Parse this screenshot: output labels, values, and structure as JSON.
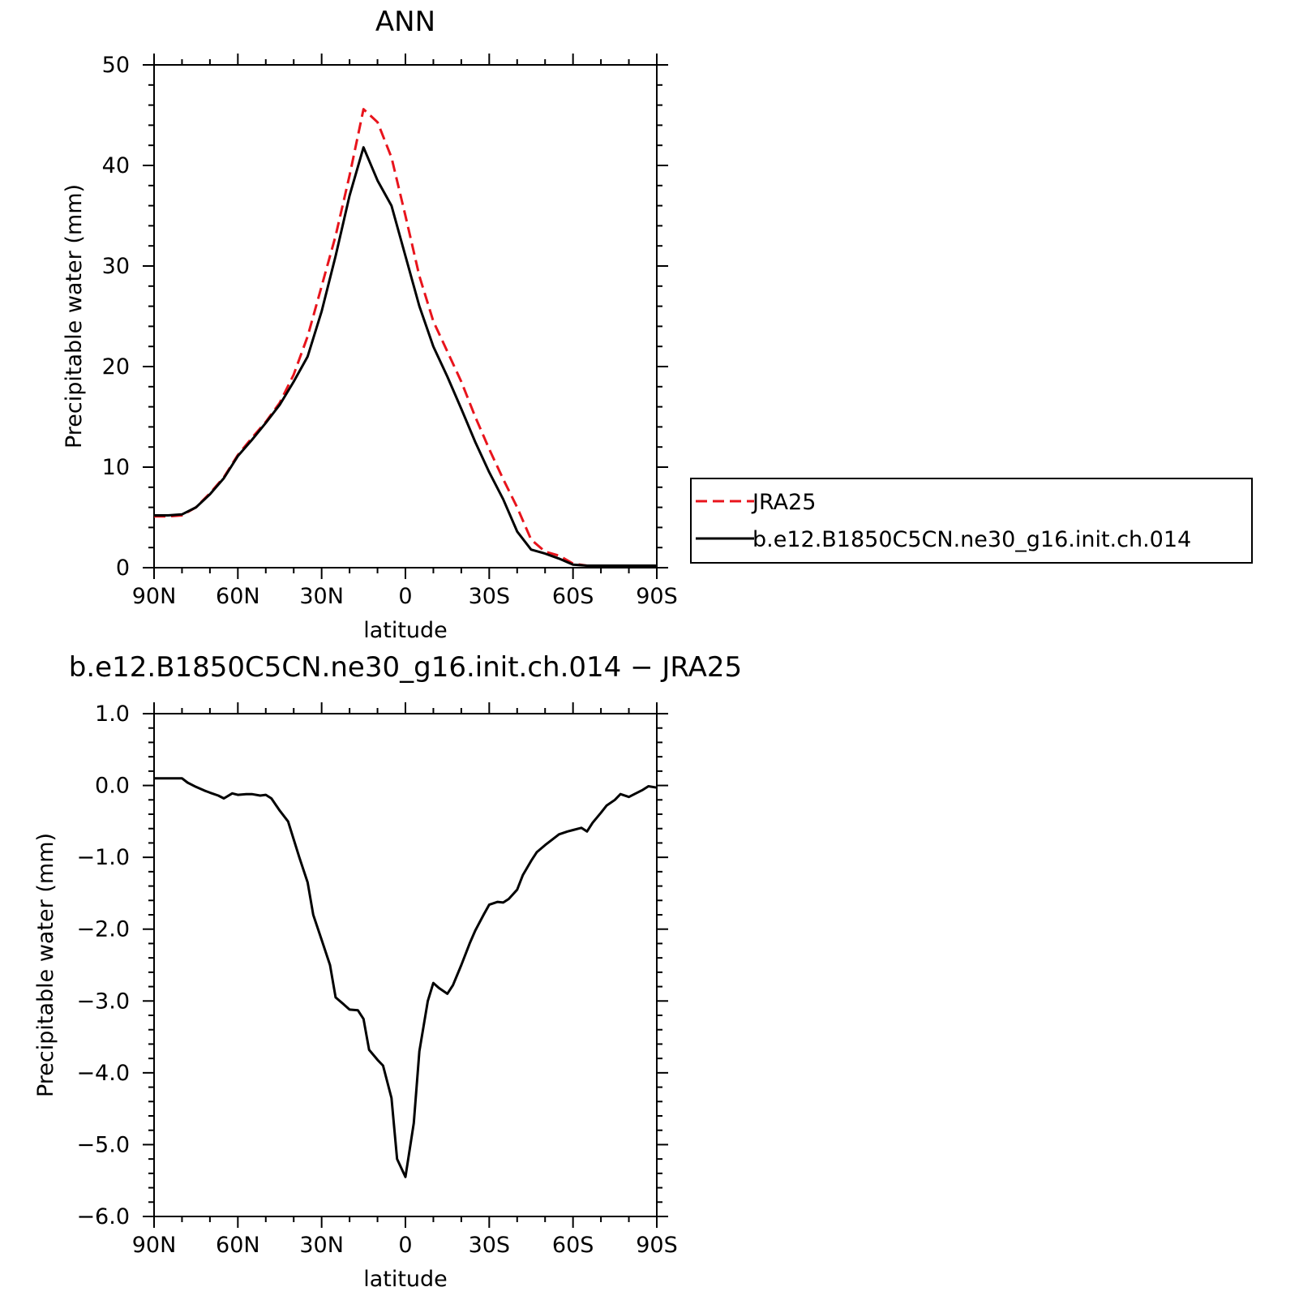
{
  "chart_data": [
    {
      "type": "line",
      "title": "ANN",
      "xlabel": "latitude",
      "ylabel": "Precipitable water (mm)",
      "x_ticks": [
        "90N",
        "60N",
        "30N",
        "0",
        "30S",
        "60S",
        "90S"
      ],
      "x_tick_values": [
        90,
        60,
        30,
        0,
        -30,
        -60,
        -90
      ],
      "x_reversed": true,
      "xlim": [
        90,
        -90
      ],
      "ylim": [
        0,
        50
      ],
      "y_ticks": [
        "0",
        "10",
        "20",
        "30",
        "40",
        "50"
      ],
      "y_tick_values": [
        0,
        10,
        20,
        30,
        40,
        50
      ],
      "legend_position": "right",
      "series": [
        {
          "name": "JRA25",
          "color": "#e8141c",
          "dash": "dashed",
          "x": [
            90,
            85,
            80,
            75,
            70,
            65,
            60,
            55,
            50,
            45,
            40,
            35,
            30,
            25,
            20,
            15,
            10,
            5,
            0,
            -5,
            -10,
            -15,
            -20,
            -25,
            -30,
            -35,
            -40,
            -45,
            -50,
            -55,
            -60,
            -65,
            -70,
            -75,
            -80,
            -85,
            -90
          ],
          "values": [
            5.1,
            5.1,
            5.2,
            6.0,
            7.4,
            9.0,
            11.2,
            12.9,
            14.5,
            16.4,
            19.2,
            23.0,
            28.0,
            33.0,
            39.0,
            45.6,
            44.3,
            40.8,
            35.0,
            29.0,
            24.5,
            21.5,
            18.5,
            15.0,
            11.8,
            8.8,
            6.0,
            2.8,
            1.6,
            1.2,
            0.4,
            0.2,
            0.2,
            0.2,
            0.2,
            0.2,
            0.2
          ]
        },
        {
          "name": "b.e12.B1850C5CN.ne30_g16.init.ch.014",
          "color": "#000000",
          "dash": "solid",
          "x": [
            90,
            85,
            80,
            75,
            70,
            65,
            60,
            55,
            50,
            45,
            40,
            35,
            30,
            25,
            20,
            15,
            10,
            5,
            0,
            -5,
            -10,
            -15,
            -20,
            -25,
            -30,
            -35,
            -40,
            -45,
            -50,
            -55,
            -60,
            -65,
            -70,
            -75,
            -80,
            -85,
            -90
          ],
          "values": [
            5.2,
            5.2,
            5.3,
            6.0,
            7.3,
            8.9,
            11.1,
            12.7,
            14.4,
            16.2,
            18.5,
            21.0,
            25.5,
            31.0,
            37.0,
            41.8,
            38.5,
            36.0,
            31.0,
            26.0,
            22.0,
            19.0,
            15.8,
            12.5,
            9.5,
            6.8,
            3.6,
            1.8,
            1.4,
            0.9,
            0.3,
            0.2,
            0.2,
            0.2,
            0.2,
            0.2,
            0.2
          ]
        }
      ]
    },
    {
      "type": "line",
      "title": "b.e12.B1850C5CN.ne30_g16.init.ch.014 − JRA25",
      "xlabel": "latitude",
      "ylabel": "Precipitable water (mm)",
      "x_ticks": [
        "90N",
        "60N",
        "30N",
        "0",
        "30S",
        "60S",
        "90S"
      ],
      "x_tick_values": [
        90,
        60,
        30,
        0,
        -30,
        -60,
        -90
      ],
      "x_reversed": true,
      "xlim": [
        90,
        -90
      ],
      "ylim": [
        -6,
        1
      ],
      "y_ticks": [
        "1.0",
        "0.0",
        "−1.0",
        "−2.0",
        "−3.0",
        "−4.0",
        "−5.0",
        "−6.0"
      ],
      "y_tick_values": [
        1,
        0,
        -1,
        -2,
        -3,
        -4,
        -5,
        -6
      ],
      "series": [
        {
          "name": "",
          "color": "#000000",
          "dash": "solid",
          "x": [
            90,
            88,
            85,
            82,
            80,
            78,
            75,
            72,
            70,
            67,
            65,
            62,
            60,
            57,
            55,
            52,
            50,
            48,
            45,
            42,
            40,
            38,
            35,
            33,
            30,
            27,
            25,
            22,
            20,
            17,
            15,
            13,
            10,
            8,
            5,
            3,
            0,
            -3,
            -5,
            -8,
            -10,
            -12,
            -15,
            -17,
            -20,
            -23,
            -25,
            -28,
            -30,
            -33,
            -35,
            -37,
            -40,
            -42,
            -45,
            -47,
            -50,
            -53,
            -55,
            -58,
            -60,
            -62,
            -63,
            -65,
            -67,
            -70,
            -72,
            -75,
            -77,
            -80,
            -82,
            -85,
            -87,
            -90
          ],
          "values": [
            0.1,
            0.1,
            0.1,
            0.1,
            0.1,
            0.04,
            -0.02,
            -0.07,
            -0.1,
            -0.14,
            -0.18,
            -0.11,
            -0.13,
            -0.12,
            -0.12,
            -0.14,
            -0.13,
            -0.18,
            -0.35,
            -0.5,
            -0.75,
            -1.0,
            -1.35,
            -1.8,
            -2.15,
            -2.5,
            -2.95,
            -3.05,
            -3.12,
            -3.13,
            -3.25,
            -3.68,
            -3.82,
            -3.9,
            -4.35,
            -5.2,
            -5.45,
            -4.7,
            -3.7,
            -3.0,
            -2.75,
            -2.82,
            -2.9,
            -2.78,
            -2.5,
            -2.2,
            -2.02,
            -1.8,
            -1.66,
            -1.62,
            -1.63,
            -1.58,
            -1.45,
            -1.25,
            -1.05,
            -0.93,
            -0.83,
            -0.74,
            -0.68,
            -0.64,
            -0.62,
            -0.6,
            -0.59,
            -0.64,
            -0.52,
            -0.38,
            -0.28,
            -0.2,
            -0.12,
            -0.16,
            -0.12,
            -0.06,
            -0.01,
            -0.03
          ]
        }
      ]
    }
  ]
}
